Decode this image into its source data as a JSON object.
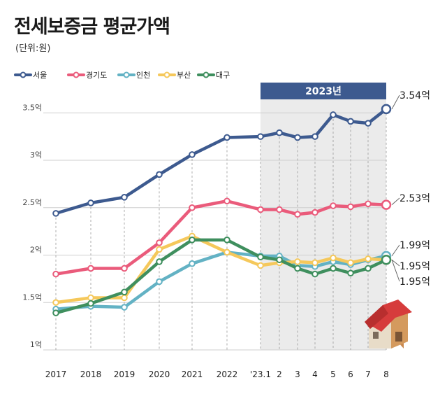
{
  "header": {
    "title": "전세보증금 평균가액",
    "unit": "(단위:원)"
  },
  "badge": {
    "label": "2023년"
  },
  "chart_data": {
    "type": "line",
    "categories": [
      "2017",
      "2018",
      "2019",
      "2020",
      "2021",
      "2022",
      "'23.1",
      "2",
      "3",
      "4",
      "5",
      "6",
      "7",
      "8"
    ],
    "y_tick_labels": [
      "1억",
      "1.5억",
      "2억",
      "2.5억",
      "3억",
      "3.5억"
    ],
    "y_tick_values": [
      1.0,
      1.5,
      2.0,
      2.5,
      3.0,
      3.5
    ],
    "ylim": [
      1.0,
      3.8
    ],
    "highlight_range": [
      "'23.1",
      "8"
    ],
    "legend_position": "top-left",
    "series": [
      {
        "name": "서울",
        "color": "#3d5a8f",
        "values": [
          2.44,
          2.55,
          2.61,
          2.85,
          3.06,
          3.24,
          3.25,
          3.29,
          3.24,
          3.25,
          3.48,
          3.41,
          3.39,
          3.54
        ],
        "end_label": "3.54억"
      },
      {
        "name": "경기도",
        "color": "#ea5b7b",
        "values": [
          1.8,
          1.86,
          1.86,
          2.13,
          2.5,
          2.57,
          2.48,
          2.48,
          2.43,
          2.45,
          2.52,
          2.51,
          2.54,
          2.53
        ],
        "end_label": "2.53억"
      },
      {
        "name": "인천",
        "color": "#63b2c4",
        "values": [
          1.43,
          1.46,
          1.45,
          1.72,
          1.91,
          2.03,
          1.99,
          1.99,
          1.89,
          1.88,
          1.93,
          1.9,
          1.95,
          1.99
        ],
        "end_label": "1.99억"
      },
      {
        "name": "부산",
        "color": "#f5c85b",
        "values": [
          1.5,
          1.55,
          1.55,
          2.06,
          2.2,
          2.03,
          1.89,
          1.92,
          1.93,
          1.92,
          1.97,
          1.92,
          1.96,
          1.95
        ],
        "end_label": "1.95억"
      },
      {
        "name": "대구",
        "color": "#3f8f5e",
        "values": [
          1.39,
          1.49,
          1.61,
          1.93,
          2.16,
          2.16,
          1.98,
          1.95,
          1.86,
          1.8,
          1.86,
          1.81,
          1.86,
          1.95
        ],
        "end_label": "1.95억"
      }
    ]
  }
}
